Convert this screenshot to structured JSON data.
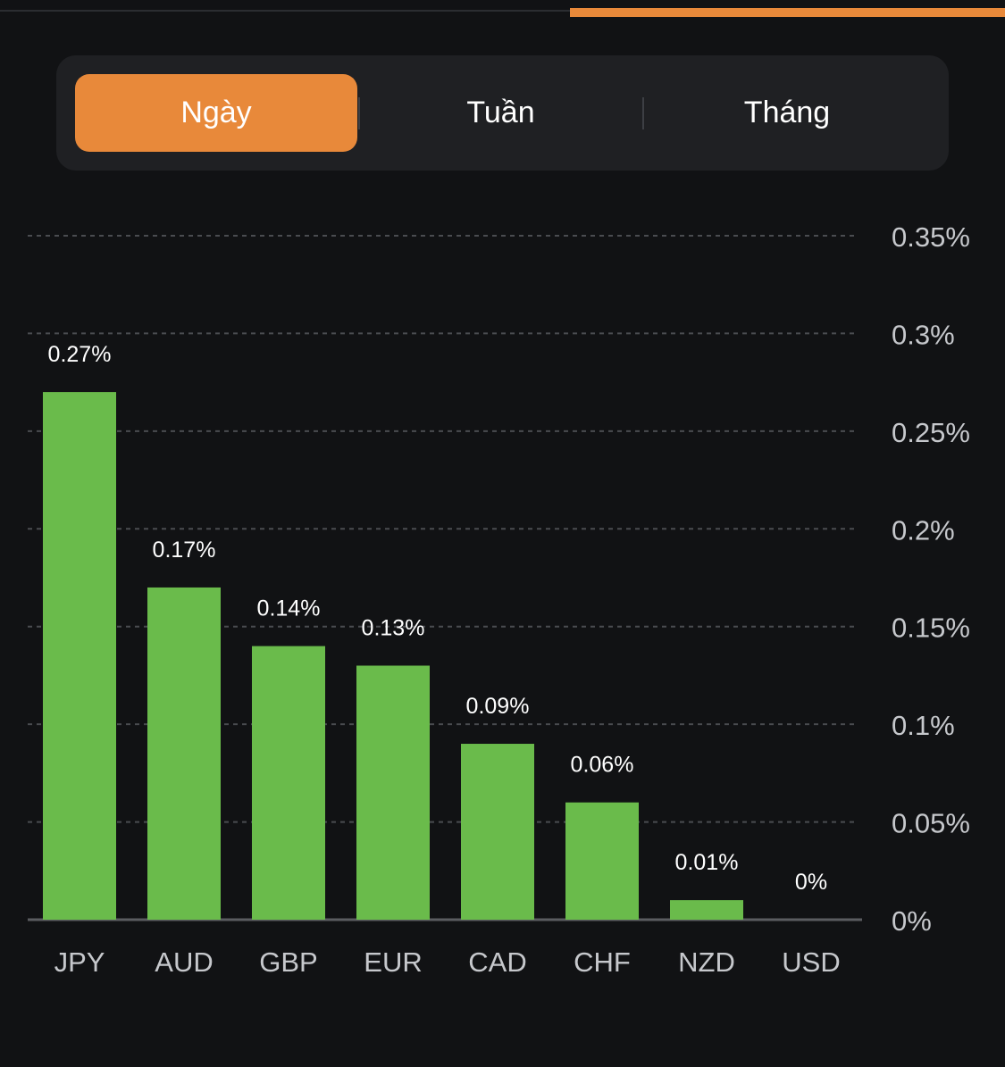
{
  "tabs": [
    {
      "label": "Ngày",
      "active": true
    },
    {
      "label": "Tuần",
      "active": false
    },
    {
      "label": "Tháng",
      "active": false
    }
  ],
  "colors": {
    "background": "#111214",
    "accent": "#e8893a",
    "bar": "#6abb4b",
    "grid": "#4a4c50",
    "axis_text": "#c6c8cc",
    "value_text": "#ffffff"
  },
  "chart_data": {
    "type": "bar",
    "categories": [
      "JPY",
      "AUD",
      "GBP",
      "EUR",
      "CAD",
      "CHF",
      "NZD",
      "USD"
    ],
    "values": [
      0.27,
      0.17,
      0.14,
      0.13,
      0.09,
      0.06,
      0.01,
      0
    ],
    "value_labels": [
      "0.27%",
      "0.17%",
      "0.14%",
      "0.13%",
      "0.09%",
      "0.06%",
      "0.01%",
      "0%"
    ],
    "y_ticks": [
      0,
      0.05,
      0.1,
      0.15,
      0.2,
      0.25,
      0.3,
      0.35
    ],
    "y_tick_labels": [
      "0%",
      "0.05%",
      "0.1%",
      "0.15%",
      "0.2%",
      "0.25%",
      "0.3%",
      "0.35%"
    ],
    "ylim": [
      0,
      0.35
    ],
    "y_axis_position": "right",
    "grid": true,
    "title": "",
    "xlabel": "",
    "ylabel": ""
  }
}
